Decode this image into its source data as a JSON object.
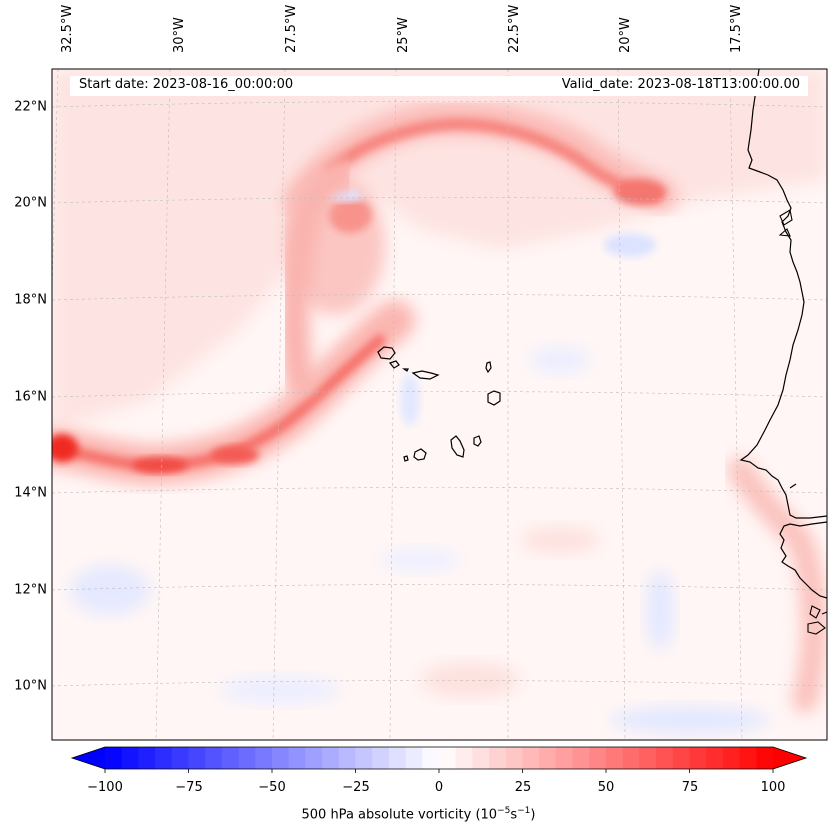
{
  "map": {
    "start_date": "Start date: 2023-08-16_00:00:00",
    "valid_date": "Valid_date: 2023-08-18T13:00:00.00",
    "longitude_labels": [
      "32.5°W",
      "30°W",
      "27.5°W",
      "25°W",
      "22.5°W",
      "20°W",
      "17.5°W"
    ],
    "latitude_labels": [
      "22°N",
      "20°N",
      "18°N",
      "16°N",
      "14°N",
      "12°N",
      "10°N"
    ],
    "region": "Eastern tropical Atlantic, Cabo Verde islands and West African coast"
  },
  "colorbar": {
    "label": "500 hPa absolute vorticity (10",
    "label_exp1": "−5",
    "label_mid": "s",
    "label_exp2": "−1",
    "label_end": ")",
    "ticks": [
      "−100",
      "−75",
      "−50",
      "−25",
      "0",
      "25",
      "50",
      "75",
      "100"
    ],
    "min": -100,
    "max": 100,
    "levels": 41,
    "colors": {
      "negative": "#0000ff",
      "zero": "#ffffff",
      "positive": "#ff0000"
    }
  }
}
